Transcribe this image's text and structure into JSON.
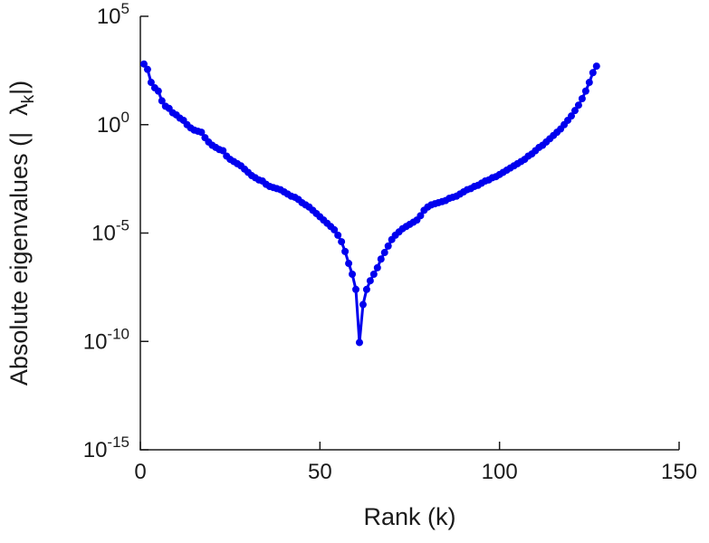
{
  "figure": {
    "background": "#ffffff",
    "axis_color": "#1a1a1a"
  },
  "chart_data": {
    "type": "line",
    "title": "",
    "xlabel": "Rank (k)",
    "ylabel": "Absolute eigenvalues (|λ_k|)",
    "ylabel_parts": {
      "prefix": "Absolute eigenvalues (|",
      "lambda": "λ",
      "subscript": "k",
      "suffix": "|)"
    },
    "legend": [],
    "grid": false,
    "y_scale": "log10",
    "x_range": [
      0,
      150
    ],
    "y_range_exponents": [
      -15,
      5
    ],
    "x_ticks": [
      0,
      50,
      100,
      150
    ],
    "x_tick_labels": [
      "0",
      "50",
      "100",
      "150"
    ],
    "y_tick_base": "10",
    "y_tick_exponents": [
      5,
      0,
      -5,
      -10,
      -15
    ],
    "line_color": "#0000ee",
    "marker": "circle",
    "marker_radius": 4,
    "line_width": 3,
    "x": [
      1,
      2,
      3,
      4,
      5,
      6,
      7,
      8,
      9,
      10,
      11,
      12,
      13,
      14,
      15,
      16,
      17,
      18,
      19,
      20,
      21,
      22,
      23,
      24,
      25,
      26,
      27,
      28,
      29,
      30,
      31,
      32,
      33,
      34,
      35,
      36,
      37,
      38,
      39,
      40,
      41,
      42,
      43,
      44,
      45,
      46,
      47,
      48,
      49,
      50,
      51,
      52,
      53,
      54,
      55,
      56,
      57,
      58,
      59,
      60,
      61,
      62,
      63,
      64,
      65,
      66,
      67,
      68,
      69,
      70,
      71,
      72,
      73,
      74,
      75,
      76,
      77,
      78,
      79,
      80,
      81,
      82,
      83,
      84,
      85,
      86,
      87,
      88,
      89,
      90,
      91,
      92,
      93,
      94,
      95,
      96,
      97,
      98,
      99,
      100,
      101,
      102,
      103,
      104,
      105,
      106,
      107,
      108,
      109,
      110,
      111,
      112,
      113,
      114,
      115,
      116,
      117,
      118,
      119,
      120,
      121,
      122,
      123,
      124,
      125,
      126,
      127
    ],
    "log10_y": [
      2.8,
      2.55,
      1.95,
      1.7,
      1.55,
      1.1,
      0.85,
      0.75,
      0.55,
      0.45,
      0.3,
      0.2,
      0.0,
      -0.15,
      -0.25,
      -0.3,
      -0.35,
      -0.6,
      -0.8,
      -0.95,
      -1.05,
      -1.15,
      -1.2,
      -1.45,
      -1.6,
      -1.7,
      -1.8,
      -1.9,
      -2.05,
      -2.2,
      -2.35,
      -2.45,
      -2.55,
      -2.6,
      -2.75,
      -2.85,
      -2.9,
      -2.95,
      -3.0,
      -3.1,
      -3.2,
      -3.3,
      -3.35,
      -3.45,
      -3.6,
      -3.7,
      -3.8,
      -3.95,
      -4.1,
      -4.25,
      -4.4,
      -4.55,
      -4.7,
      -4.85,
      -5.1,
      -5.4,
      -5.85,
      -6.4,
      -6.9,
      -7.6,
      -10.05,
      -8.3,
      -7.6,
      -7.2,
      -6.9,
      -6.6,
      -6.2,
      -5.9,
      -5.6,
      -5.3,
      -5.1,
      -4.95,
      -4.8,
      -4.7,
      -4.6,
      -4.5,
      -4.4,
      -4.2,
      -3.95,
      -3.8,
      -3.7,
      -3.65,
      -3.6,
      -3.55,
      -3.5,
      -3.4,
      -3.35,
      -3.3,
      -3.2,
      -3.1,
      -3.0,
      -2.95,
      -2.85,
      -2.8,
      -2.7,
      -2.6,
      -2.55,
      -2.45,
      -2.4,
      -2.3,
      -2.2,
      -2.1,
      -2.0,
      -1.9,
      -1.8,
      -1.7,
      -1.6,
      -1.45,
      -1.35,
      -1.2,
      -1.05,
      -0.95,
      -0.8,
      -0.65,
      -0.5,
      -0.35,
      -0.2,
      0.0,
      0.2,
      0.4,
      0.65,
      0.9,
      1.2,
      1.55,
      1.95,
      2.4,
      2.7
    ]
  }
}
